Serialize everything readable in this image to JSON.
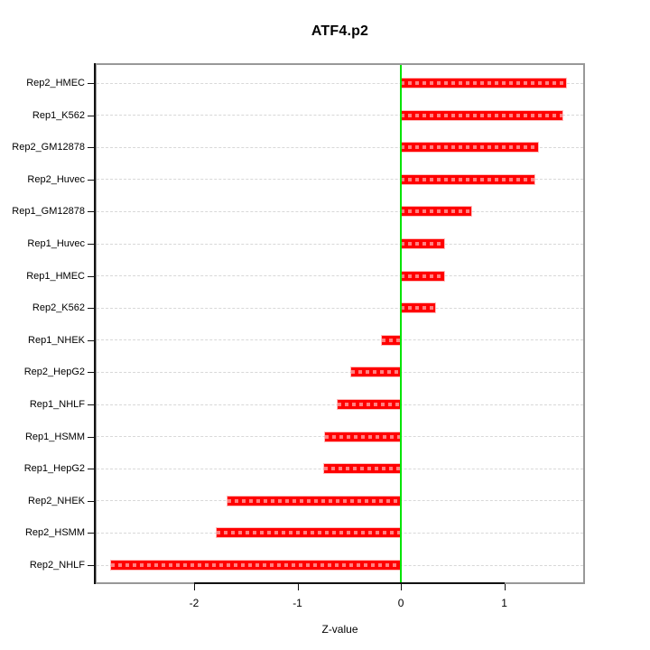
{
  "title": "ATF4.p2",
  "chart_data": {
    "type": "bar",
    "orientation": "horizontal",
    "title": "ATF4.p2",
    "xlabel": "Z-value",
    "ylabel": "",
    "categories": [
      "Rep2_HMEC",
      "Rep1_K562",
      "Rep2_GM12878",
      "Rep2_Huvec",
      "Rep1_GM12878",
      "Rep1_Huvec",
      "Rep1_HMEC",
      "Rep2_K562",
      "Rep1_NHEK",
      "Rep2_HepG2",
      "Rep1_NHLF",
      "Rep1_HSMM",
      "Rep1_HepG2",
      "Rep2_NHEK",
      "Rep2_HSMM",
      "Rep2_NHLF"
    ],
    "values": [
      1.6,
      1.56,
      1.33,
      1.29,
      0.68,
      0.42,
      0.42,
      0.33,
      -0.18,
      -0.48,
      -0.61,
      -0.73,
      -0.74,
      -1.68,
      -1.78,
      -2.8
    ],
    "xticks": [
      -2,
      -1,
      0,
      1
    ],
    "xtick_labels": [
      "-2",
      "-1",
      "0",
      "1"
    ],
    "xlim": [
      -2.96,
      1.78
    ],
    "grid": "dashed-horizontal",
    "legend": "none",
    "bar_color": "#ff0000",
    "zero_line_color": "#00e400",
    "grid_color": "#d8d8d8",
    "box_color": "#989898"
  }
}
